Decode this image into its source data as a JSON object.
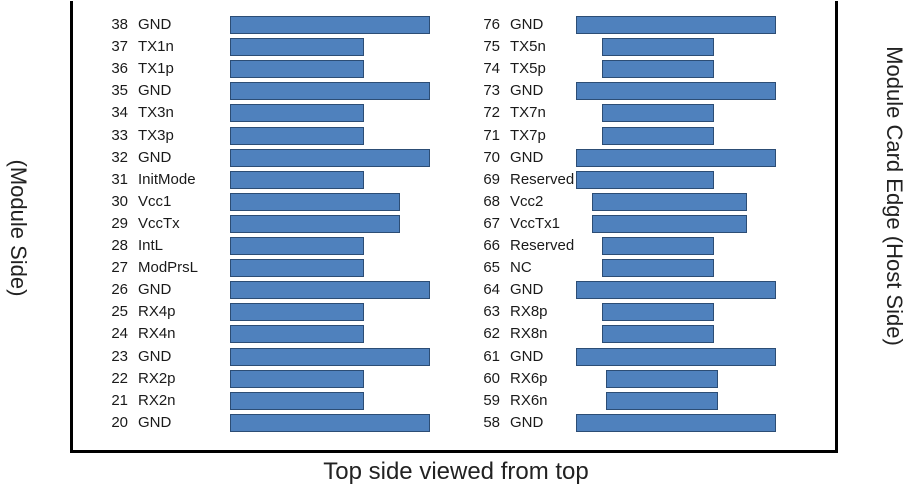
{
  "labels": {
    "left_side": "(Module Side)",
    "right_side": "Module Card Edge (Host Side)",
    "bottom": "Top side viewed from top"
  },
  "left_pins": [
    {
      "num": "38",
      "signal": "GND",
      "type": "ground"
    },
    {
      "num": "37",
      "signal": "TX1n",
      "type": "signal"
    },
    {
      "num": "36",
      "signal": "TX1p",
      "type": "signal"
    },
    {
      "num": "35",
      "signal": "GND",
      "type": "ground"
    },
    {
      "num": "34",
      "signal": "TX3n",
      "type": "signal"
    },
    {
      "num": "33",
      "signal": "TX3p",
      "type": "signal"
    },
    {
      "num": "32",
      "signal": "GND",
      "type": "ground"
    },
    {
      "num": "31",
      "signal": "InitMode",
      "type": "signal"
    },
    {
      "num": "30",
      "signal": "Vcc1",
      "type": "power"
    },
    {
      "num": "29",
      "signal": "VccTx",
      "type": "power"
    },
    {
      "num": "28",
      "signal": "IntL",
      "type": "signal"
    },
    {
      "num": "27",
      "signal": "ModPrsL",
      "type": "signal"
    },
    {
      "num": "26",
      "signal": "GND",
      "type": "ground"
    },
    {
      "num": "25",
      "signal": "RX4p",
      "type": "signal"
    },
    {
      "num": "24",
      "signal": "RX4n",
      "type": "signal"
    },
    {
      "num": "23",
      "signal": "GND",
      "type": "ground"
    },
    {
      "num": "22",
      "signal": "RX2p",
      "type": "signal"
    },
    {
      "num": "21",
      "signal": "RX2n",
      "type": "signal"
    },
    {
      "num": "20",
      "signal": "GND",
      "type": "ground"
    }
  ],
  "right_pins": [
    {
      "num": "76",
      "signal": "GND",
      "type": "ground"
    },
    {
      "num": "75",
      "signal": "TX5n",
      "type": "signal"
    },
    {
      "num": "74",
      "signal": "TX5p",
      "type": "signal"
    },
    {
      "num": "73",
      "signal": "GND",
      "type": "ground"
    },
    {
      "num": "72",
      "signal": "TX7n",
      "type": "signal"
    },
    {
      "num": "71",
      "signal": "TX7p",
      "type": "signal"
    },
    {
      "num": "70",
      "signal": "GND",
      "type": "ground"
    },
    {
      "num": "69",
      "signal": "Reserved",
      "type": "signal"
    },
    {
      "num": "68",
      "signal": "Vcc2",
      "type": "power"
    },
    {
      "num": "67",
      "signal": "VccTx1",
      "type": "power"
    },
    {
      "num": "66",
      "signal": "Reserved",
      "type": "signal"
    },
    {
      "num": "65",
      "signal": "NC",
      "type": "signal"
    },
    {
      "num": "64",
      "signal": "GND",
      "type": "ground"
    },
    {
      "num": "63",
      "signal": "RX8p",
      "type": "signal"
    },
    {
      "num": "62",
      "signal": "RX8n",
      "type": "signal"
    },
    {
      "num": "61",
      "signal": "GND",
      "type": "ground"
    },
    {
      "num": "60",
      "signal": "RX6p",
      "type": "signal"
    },
    {
      "num": "59",
      "signal": "RX6n",
      "type": "signal"
    },
    {
      "num": "58",
      "signal": "GND",
      "type": "ground"
    }
  ],
  "colors": {
    "pad_fill": "#4f81bd",
    "pad_border": "#2c4d75",
    "frame": "#000000"
  }
}
